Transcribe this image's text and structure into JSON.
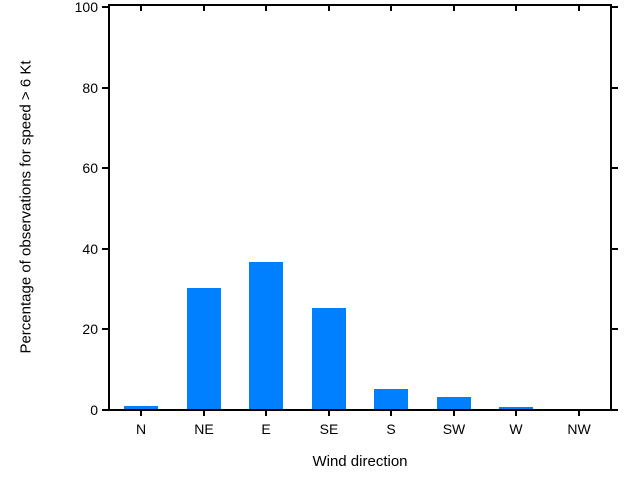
{
  "chart_data": {
    "type": "bar",
    "categories": [
      "N",
      "NE",
      "E",
      "SE",
      "S",
      "SW",
      "W",
      "NW"
    ],
    "values": [
      0.7,
      30,
      36.5,
      25,
      5,
      3,
      0.5,
      0
    ],
    "title": "",
    "xlabel": "Wind direction",
    "ylabel": "Percentage of observations for speed > 6 Kt",
    "ylim": [
      0,
      100
    ],
    "yticks": [
      0,
      20,
      40,
      60,
      80,
      100
    ],
    "grid": false,
    "legend": "none",
    "bar_color": "#0080ff",
    "axis_color": "#000000",
    "background_color": "#ffffff"
  }
}
